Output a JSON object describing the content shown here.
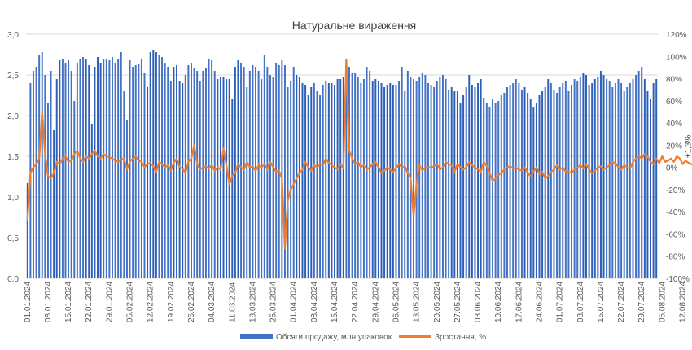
{
  "chart_data": {
    "type": "bar+line",
    "title": "Натуральне вираження",
    "y_left": {
      "min": 0,
      "max": 3,
      "step": 0.5,
      "ticks": [
        "0,0",
        "0,5",
        "1,0",
        "1,5",
        "2,0",
        "2,5",
        "3,0"
      ]
    },
    "y_right": {
      "min": -100,
      "max": 120,
      "step": 20,
      "ticks": [
        "-100%",
        "-80%",
        "-60%",
        "-40%",
        "-20%",
        "0%",
        "20%",
        "40%",
        "60%",
        "80%",
        "100%",
        "120%"
      ]
    },
    "x_tick_labels": [
      "01.01.2024",
      "08.01.2024",
      "15.01.2024",
      "22.01.2024",
      "29.01.2024",
      "05.02.2024",
      "12.02.2024",
      "19.02.2024",
      "26.02.2024",
      "04.03.2024",
      "11.03.2024",
      "18.03.2024",
      "25.03.2024",
      "01.04.2024",
      "08.04.2024",
      "15.04.2024",
      "22.04.2024",
      "29.04.2024",
      "06.05.2024",
      "13.05.2024",
      "20.05.2024",
      "27.05.2024",
      "03.06.2024",
      "10.06.2024",
      "17.06.2024",
      "24.06.2024",
      "01.07.2024",
      "08.07.2024",
      "15.07.2024",
      "22.07.2024",
      "29.07.2024",
      "05.08.2024",
      "12.08.2024"
    ],
    "grid": true,
    "legend": "bottom-center",
    "annotation": "+1,3%",
    "series": [
      {
        "name": "Обсяги продажу, млн упаковок",
        "kind": "bar",
        "axis": "left",
        "color": "#4472C4",
        "dark_color": "#2E5FB8",
        "values": [
          1.17,
          2.4,
          2.55,
          2.6,
          2.74,
          2.78,
          2.5,
          2.15,
          2.55,
          1.82,
          2.45,
          2.68,
          2.7,
          2.65,
          2.68,
          2.55,
          2.18,
          2.65,
          2.7,
          2.72,
          2.7,
          2.62,
          1.9,
          2.6,
          2.72,
          2.65,
          2.7,
          2.7,
          2.68,
          2.72,
          2.65,
          2.7,
          2.78,
          2.3,
          1.95,
          2.68,
          2.6,
          2.62,
          2.63,
          2.7,
          2.52,
          2.35,
          2.78,
          2.8,
          2.78,
          2.75,
          2.72,
          2.65,
          2.6,
          2.42,
          2.6,
          2.62,
          2.42,
          2.4,
          2.5,
          2.62,
          2.65,
          2.58,
          2.55,
          2.42,
          2.55,
          2.58,
          2.7,
          2.68,
          2.55,
          2.45,
          2.48,
          2.48,
          2.45,
          2.45,
          2.2,
          2.6,
          2.68,
          2.65,
          2.6,
          2.35,
          2.55,
          2.62,
          2.6,
          2.55,
          2.45,
          2.75,
          2.6,
          2.5,
          2.48,
          2.65,
          2.62,
          2.68,
          2.62,
          2.35,
          2.42,
          2.6,
          2.5,
          2.48,
          2.4,
          2.38,
          2.25,
          2.35,
          2.4,
          2.3,
          2.25,
          2.38,
          2.42,
          2.4,
          2.4,
          2.38,
          2.45,
          2.45,
          2.48,
          2.68,
          2.6,
          2.52,
          2.52,
          2.48,
          2.4,
          2.45,
          2.6,
          2.55,
          2.42,
          2.45,
          2.42,
          2.4,
          2.35,
          2.38,
          2.4,
          2.38,
          2.38,
          2.42,
          2.6,
          2.3,
          2.55,
          2.48,
          2.45,
          2.42,
          2.48,
          2.52,
          2.5,
          2.4,
          2.38,
          2.35,
          2.42,
          2.48,
          2.5,
          2.45,
          2.32,
          2.35,
          2.3,
          2.3,
          2.15,
          2.25,
          2.35,
          2.5,
          2.38,
          2.35,
          2.4,
          2.45,
          2.22,
          2.15,
          2.1,
          2.2,
          2.15,
          2.18,
          2.25,
          2.28,
          2.35,
          2.38,
          2.4,
          2.45,
          2.4,
          2.32,
          2.35,
          2.28,
          2.2,
          2.1,
          2.15,
          2.25,
          2.3,
          2.35,
          2.45,
          2.4,
          2.32,
          2.28,
          2.35,
          2.4,
          2.42,
          2.3,
          2.38,
          2.45,
          2.42,
          2.48,
          2.52,
          2.5,
          2.38,
          2.4,
          2.45,
          2.48,
          2.55,
          2.5,
          2.45,
          2.42,
          2.35,
          2.4,
          2.45,
          2.4,
          2.3,
          2.35,
          2.4,
          2.45,
          2.5,
          2.55,
          2.6,
          2.45,
          2.3,
          2.2,
          2.4,
          2.45
        ],
        "dark_index": [
          0,
          9,
          10,
          11,
          20,
          21,
          22,
          23,
          24,
          25,
          41,
          42,
          43,
          44,
          50,
          51,
          52,
          53,
          65,
          66,
          67,
          68,
          69,
          70,
          71,
          72,
          92,
          93,
          94,
          95,
          96,
          97,
          103,
          104,
          105,
          106,
          107,
          108,
          118,
          119,
          120,
          121,
          122,
          123,
          124,
          125,
          145,
          146,
          147,
          148,
          149,
          150,
          151,
          152,
          153,
          154,
          155,
          156,
          170,
          171,
          172,
          173,
          174,
          175,
          176,
          177,
          178,
          190,
          191,
          192,
          193,
          194,
          195,
          196,
          197,
          198,
          210,
          211,
          212,
          213,
          214,
          215,
          216,
          217,
          218,
          219
        ]
      },
      {
        "name": "Зростання, %",
        "kind": "line",
        "axis": "right",
        "color": "#ED7D31",
        "values": [
          -47,
          -5,
          0,
          3,
          8,
          50,
          12,
          -8,
          -10,
          -5,
          5,
          3,
          8,
          10,
          5,
          6,
          12,
          15,
          8,
          5,
          10,
          8,
          12,
          15,
          10,
          8,
          12,
          10,
          9,
          8,
          6,
          5,
          7,
          8,
          -2,
          5,
          8,
          10,
          6,
          5,
          0,
          3,
          4,
          1,
          -4,
          5,
          3,
          0,
          2,
          -3,
          4,
          8,
          0,
          -1,
          -5,
          5,
          8,
          20,
          3,
          -2,
          0,
          1,
          -1,
          2,
          -3,
          0,
          -2,
          17,
          2,
          -15,
          -8,
          -5,
          3,
          0,
          -2,
          5,
          0,
          1,
          -3,
          2,
          0,
          3,
          -2,
          5,
          0,
          -4,
          -3,
          -10,
          -73,
          -30,
          -20,
          -15,
          -10,
          -5,
          -2,
          5,
          0,
          -3,
          2,
          0,
          3,
          2,
          8,
          4,
          2,
          0,
          -2,
          3,
          -1,
          97,
          15,
          8,
          3,
          5,
          0,
          2,
          -2,
          0,
          3,
          5,
          0,
          -5,
          -3,
          0,
          -2,
          -4,
          -1,
          3,
          0,
          1,
          -5,
          -10,
          -44,
          -15,
          2,
          -3,
          0,
          0,
          0,
          1,
          3,
          -2,
          0,
          5,
          3,
          2,
          -4,
          3,
          0,
          -2,
          0,
          5,
          2,
          0,
          -2,
          -4,
          5,
          1,
          -5,
          -12,
          -10,
          -7,
          -5,
          -2,
          0,
          1,
          -1,
          0,
          -2,
          -3,
          0,
          -5,
          -8,
          -4,
          0,
          -6,
          -4,
          -10,
          -8,
          -4,
          -2,
          2,
          -2,
          0,
          -4,
          -4,
          -5,
          -2,
          0,
          2,
          -1,
          3,
          -2,
          -5,
          -3,
          0,
          1,
          -2,
          0,
          2,
          5,
          4,
          0,
          -2,
          2,
          0,
          -1,
          5,
          8,
          10,
          8,
          12,
          10,
          5,
          3,
          8,
          4,
          10,
          5,
          6,
          8,
          5,
          10,
          8,
          3,
          6,
          4,
          3,
          2,
          1
        ],
        "label": "+1,3%"
      }
    ]
  }
}
